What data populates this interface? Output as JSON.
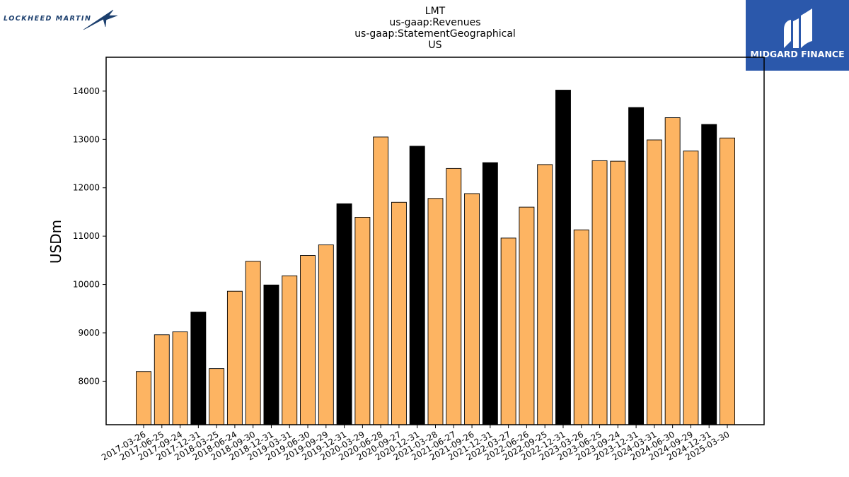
{
  "logos": {
    "left_text": "LOCKHEED MARTIN",
    "right_text": "MIDGARD FINANCE",
    "right_bg_color": "#2b58ab"
  },
  "chart_data": {
    "type": "bar",
    "title_lines": [
      "LMT",
      "us-gaap:Revenues",
      "us-gaap:StatementGeographical",
      "US"
    ],
    "xlabel": "",
    "ylabel": "USDm",
    "ylim": [
      7100,
      14700
    ],
    "yticks": [
      8000,
      9000,
      10000,
      11000,
      12000,
      13000,
      14000
    ],
    "grid": false,
    "colors": {
      "quarter": "#fdb462",
      "year_end": "#000000",
      "edge": "#000000"
    },
    "categories": [
      "2017-03-26",
      "2017-06-25",
      "2017-09-24",
      "2017-12-31",
      "2018-03-25",
      "2018-06-24",
      "2018-09-30",
      "2018-12-31",
      "2019-03-31",
      "2019-06-30",
      "2019-09-29",
      "2019-12-31",
      "2020-03-29",
      "2020-06-28",
      "2020-09-27",
      "2020-12-31",
      "2021-03-28",
      "2021-06-27",
      "2021-09-26",
      "2021-12-31",
      "2022-03-27",
      "2022-06-26",
      "2022-09-25",
      "2022-12-31",
      "2023-03-26",
      "2023-06-25",
      "2023-09-24",
      "2023-12-31",
      "2024-03-31",
      "2024-06-30",
      "2024-09-29",
      "2024-12-31",
      "2025-03-30"
    ],
    "values": [
      8200,
      8960,
      9020,
      9430,
      8260,
      9860,
      10480,
      9990,
      10180,
      10600,
      10820,
      11670,
      11390,
      13050,
      11700,
      12860,
      11780,
      12400,
      11880,
      12520,
      10960,
      11600,
      12480,
      14020,
      11130,
      12560,
      12550,
      13660,
      12990,
      13450,
      12760,
      13310,
      13030
    ],
    "highlight": [
      false,
      false,
      false,
      true,
      false,
      false,
      false,
      true,
      false,
      false,
      false,
      true,
      false,
      false,
      false,
      true,
      false,
      false,
      false,
      true,
      false,
      false,
      false,
      true,
      false,
      false,
      false,
      true,
      false,
      false,
      false,
      true,
      false
    ]
  }
}
